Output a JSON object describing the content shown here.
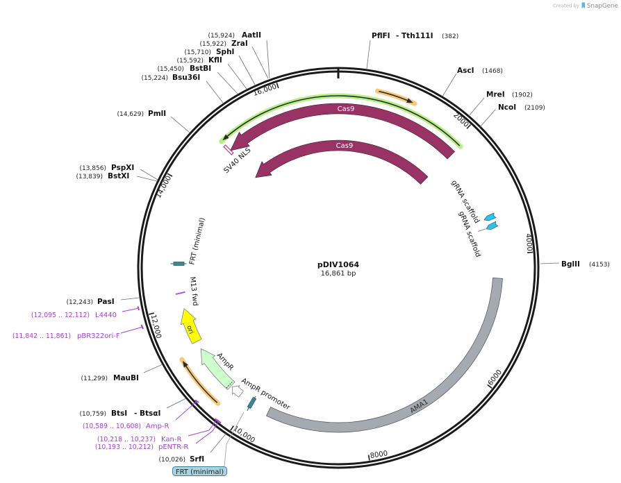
{
  "watermark": {
    "prefix": "Created by",
    "brand": "SnapGene"
  },
  "map": {
    "name": "pDIV1064",
    "length": "16,861 bp"
  },
  "ticks": [
    "2000",
    "4000",
    "6000",
    "8000",
    "10,000",
    "12,000",
    "14,000",
    "16,000"
  ],
  "restriction_sites": [
    {
      "name": "PflFI",
      "name2": "- Tth111I",
      "position": "(382)"
    },
    {
      "name": "AscI",
      "position": "(1468)"
    },
    {
      "name": "MreI",
      "position": "(1902)"
    },
    {
      "name": "NcoI",
      "position": "(2109)"
    },
    {
      "name": "BglII",
      "position": "(4153)"
    },
    {
      "name": "SrfI",
      "position": "(10,026)"
    },
    {
      "name": "BtsI",
      "name2": "- BtsαI",
      "position": "(10,759)"
    },
    {
      "name": "MauBI",
      "position": "(11,299)"
    },
    {
      "name": "PasI",
      "position": "(12,243)"
    },
    {
      "name": "BstXI",
      "position": "(13,839)"
    },
    {
      "name": "PspXI",
      "position": "(13,856)"
    },
    {
      "name": "PmlI",
      "position": "(14,629)"
    },
    {
      "name": "Bsu36I",
      "position": "(15,224)"
    },
    {
      "name": "BstBI",
      "position": "(15,450)"
    },
    {
      "name": "KflI",
      "position": "(15,592)"
    },
    {
      "name": "SphI",
      "position": "(15,710)"
    },
    {
      "name": "ZraI",
      "position": "(15,922)"
    },
    {
      "name": "AatII",
      "position": "(15,924)"
    }
  ],
  "primers": [
    {
      "name": "L4440",
      "range": "(12,095 .. 12,112)"
    },
    {
      "name": "pBR322ori-F",
      "range": "(11,842 .. 11,861)"
    },
    {
      "name": "Amp-R",
      "range": "(10,589 .. 10,608)"
    },
    {
      "name": "Kan-R",
      "range": "(10,218 .. 10,237)"
    },
    {
      "name": "pENTR-R",
      "range": "(10,193 .. 10,212)"
    },
    {
      "name": "M13 fwd"
    }
  ],
  "features": [
    {
      "name": "Cas9",
      "color": "#993366"
    },
    {
      "name": "Cas9",
      "color": "#993366"
    },
    {
      "name": "SV40 NLS",
      "color": "#c2307c"
    },
    {
      "name": "gRNA scaffold",
      "color": "#2cc3ef"
    },
    {
      "name": "gRNA scaffold",
      "color": "#2cc3ef"
    },
    {
      "name": "AMA1",
      "color": "#a5aab0"
    },
    {
      "name": "AmpR promoter",
      "color": "#ffffff"
    },
    {
      "name": "AmpR",
      "color": "#ccffcc"
    },
    {
      "name": "ori",
      "color": "#ffff00"
    },
    {
      "name": "FRT (minimal)",
      "color": "#3a8898"
    },
    {
      "name": "FRT (minimal)",
      "color": "#3a8898"
    }
  ],
  "orfs": [
    {
      "color": "#b5ef85"
    },
    {
      "color": "#f7c97a"
    },
    {
      "color": "#f7c97a"
    }
  ],
  "colors": {
    "backbone": "#1a1a1a",
    "primer": "#a33fd6",
    "frt_box": "#a9d5e0",
    "logo": "#55b7e6"
  }
}
